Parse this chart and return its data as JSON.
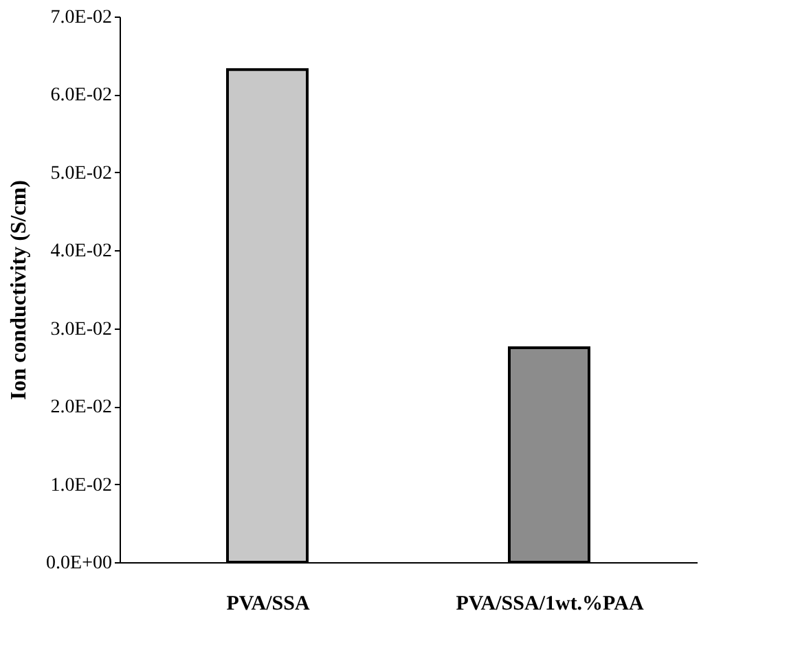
{
  "chart_data": {
    "type": "bar",
    "ylabel": "Ion conductivity (S/cm)",
    "categories": [
      "PVA/SSA",
      "PVA/SSA/1wt.%PAA"
    ],
    "values": [
      0.0632,
      0.0275
    ],
    "colors": [
      "#c8c8c8",
      "#8c8c8c"
    ],
    "ylim": [
      0,
      0.07
    ],
    "yticks": [
      {
        "value": 0,
        "label": "0.0E+00"
      },
      {
        "value": 0.01,
        "label": "1.0E-02"
      },
      {
        "value": 0.02,
        "label": "2.0E-02"
      },
      {
        "value": 0.03,
        "label": "3.0E-02"
      },
      {
        "value": 0.04,
        "label": "4.0E-02"
      },
      {
        "value": 0.05,
        "label": "5.0E-02"
      },
      {
        "value": 0.06,
        "label": "6.0E-02"
      },
      {
        "value": 0.07,
        "label": "7.0E-02"
      }
    ],
    "grid": false
  }
}
